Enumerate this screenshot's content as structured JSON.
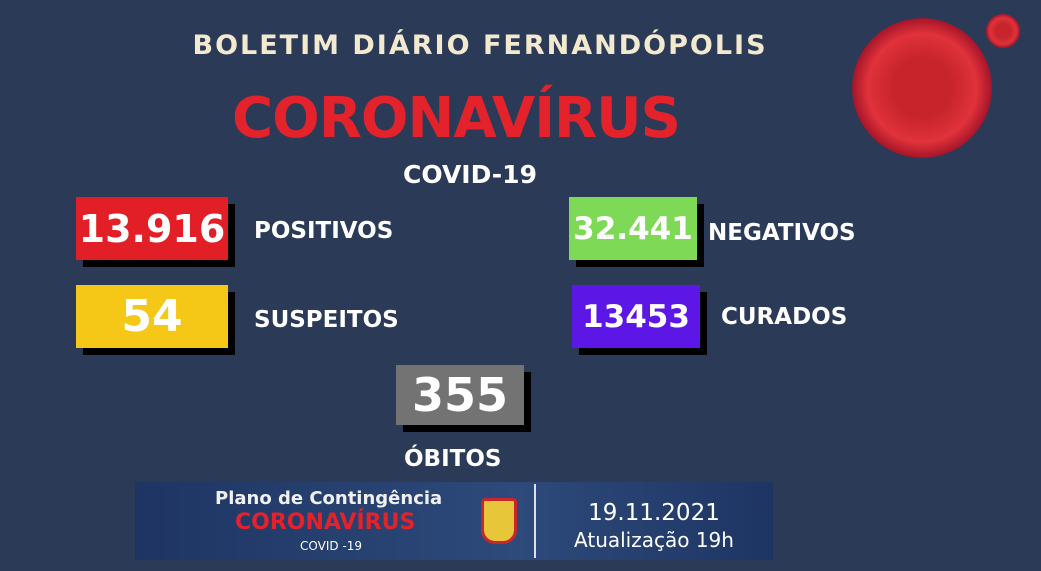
{
  "header": {
    "title": "BOLETIM DIÁRIO FERNANDÓPOLIS",
    "headline": "CORONAVÍRUS",
    "subtitle": "COVID-19"
  },
  "stats": [
    {
      "label": "POSITIVOS",
      "value": "13.916",
      "color": "#e21f26"
    },
    {
      "label": "SUSPEITOS",
      "value": "54",
      "color": "#f5c817"
    },
    {
      "label": "NEGATIVOS",
      "value": "32.441",
      "color": "#7ed957"
    },
    {
      "label": "CURADOS",
      "value": "13453",
      "color": "#5c17e6"
    },
    {
      "label": "ÓBITOS",
      "value": "355",
      "color": "#737373"
    }
  ],
  "banner": {
    "line1": "Plano de Contingência",
    "line2": "CORONAVÍRUS",
    "line3": "COVID -19",
    "date": "19.11.2021",
    "update": "Atualização 19h"
  }
}
